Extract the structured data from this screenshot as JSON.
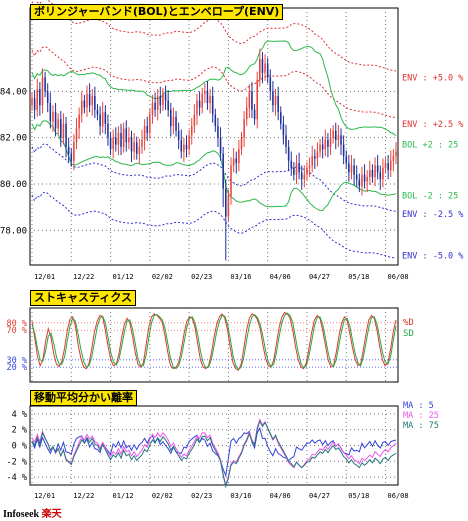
{
  "colors": {
    "up": "#e8453c",
    "down": "#1f2f9a",
    "env5": "#e03030",
    "env25": "#e03030",
    "envn": "#3030d0",
    "bol": "#2db84b",
    "stochK": "#e03a2a",
    "stochD": "#25a845",
    "ma5": "#3344dd",
    "ma25": "#ee55ee",
    "ma75": "#227777",
    "grid": "#777",
    "ref": "#ff8080"
  },
  "footer": {
    "brand": "Infoseek",
    "sub": "楽天"
  },
  "chart_data": [
    {
      "type": "candlestick",
      "title": "ボリンジャーバンド(BOL)とエンベロープ(ENV)",
      "ylim": [
        76.5,
        87.6
      ],
      "yticks": [
        "84.00",
        "82.00",
        "80.00",
        "78.00"
      ],
      "ytick_values": [
        84,
        82,
        80,
        78
      ],
      "x_tick_labels": [
        "12/01",
        "12/22",
        "01/12",
        "02/02",
        "02/23",
        "03/16",
        "04/06",
        "04/27",
        "05/18",
        "06/08"
      ],
      "x_tick_index": [
        0,
        15,
        30,
        45,
        60,
        75,
        90,
        105,
        120,
        135
      ],
      "line_labels": [
        {
          "text": "ENV : +5.0 %",
          "color": "env5",
          "y": 84.6
        },
        {
          "text": "ENV : +2.5 %",
          "color": "env25",
          "y": 82.6
        },
        {
          "text": "BOL +2 : 25",
          "color": "bol",
          "y": 81.7
        },
        {
          "text": "BOL -2 : 25",
          "color": "bol",
          "y": 79.5
        },
        {
          "text": "ENV : -2.5 %",
          "color": "envn",
          "y": 78.7
        },
        {
          "text": "ENV : -5.0 %",
          "color": "envn",
          "y": 76.9
        }
      ],
      "close": [
        83.7,
        83.2,
        84.1,
        83.4,
        84.6,
        84.0,
        83.5,
        82.7,
        83.1,
        82.4,
        82.8,
        82.0,
        82.6,
        81.6,
        81.3,
        81.0,
        81.8,
        82.4,
        83.0,
        83.6,
        83.3,
        83.9,
        83.4,
        83.8,
        83.2,
        83.0,
        82.5,
        83.1,
        82.6,
        82.0,
        81.5,
        82.0,
        81.7,
        82.2,
        81.6,
        82.4,
        81.8,
        82.0,
        81.4,
        81.8,
        81.3,
        81.6,
        81.9,
        82.5,
        82.2,
        83.0,
        83.5,
        83.2,
        83.8,
        83.4,
        83.9,
        83.6,
        83.2,
        82.5,
        82.9,
        82.3,
        81.9,
        81.4,
        81.7,
        81.5,
        82.1,
        82.5,
        83.0,
        83.6,
        83.3,
        83.9,
        84.0,
        83.5,
        83.8,
        83.0,
        82.5,
        82.0,
        81.3,
        79.8,
        78.6,
        79.5,
        80.8,
        81.1,
        80.9,
        81.5,
        82.0,
        82.8,
        83.3,
        84.0,
        83.2,
        82.8,
        84.5,
        85.4,
        84.8,
        85.2,
        84.6,
        84.0,
        83.4,
        83.8,
        83.1,
        82.6,
        82.1,
        81.6,
        81.0,
        80.7,
        80.4,
        80.9,
        80.5,
        80.2,
        80.4,
        80.7,
        80.8,
        81.2,
        81.1,
        81.4,
        81.7,
        81.5,
        81.9,
        81.6,
        82.0,
        82.3,
        81.9,
        82.1,
        81.7,
        81.2,
        80.9,
        80.5,
        80.8,
        80.4,
        80.2,
        79.9,
        80.4,
        80.1,
        80.3,
        80.6,
        80.3,
        80.8,
        80.5,
        80.2,
        80.7,
        80.9,
        80.6,
        81.0,
        81.2,
        81.4
      ]
    },
    {
      "type": "line",
      "title": "ストキャスティクス",
      "yticks_left": [
        "80 %",
        "70 %",
        "30 %",
        "20 %"
      ],
      "ytick_values": [
        80,
        70,
        30,
        20
      ],
      "legend": [
        {
          "text": "%D",
          "color": "stochK"
        },
        {
          "text": "SD",
          "color": "stochD"
        }
      ],
      "series": [
        {
          "name": "%D",
          "values": [
            82,
            60,
            35,
            22,
            30,
            55,
            72,
            60,
            38,
            24,
            21,
            28,
            46,
            70,
            85,
            88,
            75,
            50,
            32,
            20,
            18,
            25,
            45,
            68,
            82,
            90,
            88,
            70,
            48,
            30,
            22,
            24,
            38,
            60,
            78,
            86,
            80,
            62,
            40,
            24,
            20,
            26,
            50,
            74,
            88,
            92,
            90,
            86,
            80,
            62,
            40,
            22,
            18,
            20,
            26,
            44,
            66,
            82,
            88,
            86,
            74,
            52,
            30,
            20,
            18,
            22,
            38,
            60,
            78,
            88,
            92,
            86,
            70,
            46,
            26,
            18,
            16,
            24,
            46,
            70,
            86,
            92,
            90,
            84,
            72,
            50,
            32,
            22,
            20,
            30,
            52,
            74,
            88,
            94,
            92,
            86,
            70,
            48,
            30,
            20,
            18,
            26,
            46,
            68,
            84,
            90,
            86,
            70,
            50,
            30,
            20,
            22,
            40,
            62,
            80,
            88,
            84,
            66,
            46,
            30,
            22,
            24,
            44,
            66,
            84,
            90,
            86,
            70,
            48,
            30,
            22,
            26,
            44,
            68,
            84
          ]
        },
        {
          "name": "SD",
          "values": [
            78,
            66,
            46,
            30,
            28,
            42,
            62,
            66,
            52,
            34,
            24,
            24,
            34,
            56,
            76,
            86,
            82,
            64,
            44,
            28,
            20,
            22,
            34,
            54,
            74,
            86,
            89,
            80,
            60,
            40,
            27,
            23,
            30,
            48,
            68,
            82,
            84,
            72,
            52,
            32,
            22,
            22,
            36,
            60,
            80,
            90,
            91,
            88,
            84,
            72,
            52,
            32,
            20,
            18,
            22,
            34,
            54,
            74,
            86,
            88,
            80,
            64,
            42,
            26,
            19,
            20,
            30,
            48,
            68,
            82,
            90,
            89,
            78,
            58,
            36,
            22,
            17,
            20,
            34,
            56,
            76,
            88,
            91,
            87,
            78,
            62,
            42,
            27,
            21,
            24,
            40,
            62,
            80,
            90,
            93,
            90,
            80,
            60,
            40,
            25,
            19,
            22,
            36,
            56,
            76,
            87,
            88,
            78,
            60,
            40,
            25,
            21,
            30,
            50,
            70,
            84,
            86,
            76,
            56,
            38,
            26,
            22,
            34,
            54,
            74,
            87,
            88,
            78,
            60,
            40,
            27,
            24,
            34,
            56,
            76
          ]
        }
      ]
    },
    {
      "type": "line",
      "title": "移動平均分かい離率",
      "yticks_left": [
        "4 %",
        "2 %",
        "0 %",
        "-2 %",
        "-4 %"
      ],
      "ytick_values": [
        4,
        2,
        0,
        -2,
        -4
      ],
      "legend": [
        {
          "text": "MA : 5",
          "color": "ma5"
        },
        {
          "text": "MA : 25",
          "color": "ma25"
        },
        {
          "text": "MA : 75",
          "color": "ma75"
        }
      ],
      "x_tick_labels": [
        "12/01",
        "12/22",
        "01/12",
        "02/02",
        "02/23",
        "03/16",
        "04/06",
        "04/27",
        "05/18",
        "06/08"
      ],
      "series": [
        {
          "name": "MA : 5",
          "values": [
            0.5,
            -0.3,
            0.8,
            -0.2,
            1.0,
            0.3,
            -0.4,
            -1.0,
            -0.2,
            -0.8,
            0.2,
            -0.6,
            0.4,
            -0.8,
            -0.9,
            -1.1,
            0.2,
            0.9,
            1.1,
            1.2,
            0.3,
            0.8,
            -0.2,
            0.4,
            -0.4,
            -0.5,
            -0.9,
            0.3,
            -0.2,
            -0.7,
            -1.1,
            0.2,
            -0.2,
            0.5,
            -0.3,
            0.6,
            -0.3,
            0.0,
            -0.6,
            0.1,
            -0.5,
            0.1,
            0.4,
            0.9,
            0.3,
            1.0,
            1.2,
            0.4,
            0.9,
            0.1,
            0.5,
            0.0,
            -0.4,
            -1.0,
            -0.2,
            -0.8,
            -0.9,
            -1.0,
            -0.2,
            -0.3,
            0.5,
            0.8,
            1.1,
            1.3,
            0.4,
            0.9,
            0.7,
            -0.1,
            0.3,
            -0.7,
            -1.0,
            -1.3,
            -1.9,
            -3.0,
            -3.8,
            -1.6,
            0.6,
            0.9,
            0.3,
            0.9,
            1.1,
            1.6,
            1.5,
            1.8,
            0.4,
            -0.3,
            1.6,
            2.2,
            0.9,
            0.9,
            -0.1,
            -0.8,
            -1.3,
            -0.4,
            -1.0,
            -1.2,
            -1.5,
            -1.6,
            -1.9,
            -1.6,
            -1.4,
            -0.2,
            -0.4,
            -0.6,
            -0.1,
            0.3,
            0.3,
            0.7,
            0.3,
            0.6,
            0.7,
            0.1,
            0.6,
            0.0,
            0.4,
            0.6,
            -0.1,
            0.2,
            -0.4,
            -0.9,
            -1.0,
            -1.2,
            -0.3,
            -0.7,
            -0.6,
            -0.8,
            0.3,
            -0.3,
            0.1,
            0.5,
            -0.1,
            0.6,
            0.0,
            -0.3,
            0.4,
            0.5,
            0.0,
            0.5,
            0.6,
            0.7
          ]
        },
        {
          "name": "MA : 25",
          "values": [
            1.0,
            0.4,
            1.4,
            0.5,
            1.8,
            1.0,
            0.3,
            -0.6,
            -0.2,
            -1.0,
            -0.4,
            -1.3,
            -0.5,
            -1.7,
            -2.0,
            -2.2,
            -1.2,
            -0.4,
            0.4,
            1.1,
            0.7,
            1.4,
            0.8,
            1.2,
            0.5,
            0.3,
            -0.3,
            0.4,
            -0.2,
            -0.9,
            -1.4,
            -0.8,
            -1.1,
            -0.4,
            -1.1,
            -0.1,
            -0.8,
            -0.6,
            -1.3,
            -0.8,
            -1.4,
            -1.0,
            -0.6,
            0.1,
            -0.2,
            0.8,
            1.4,
            1.0,
            1.6,
            1.1,
            1.6,
            1.2,
            0.7,
            -0.1,
            0.3,
            -0.4,
            -0.9,
            -1.5,
            -1.1,
            -1.3,
            -0.6,
            -0.1,
            0.5,
            1.2,
            0.9,
            1.6,
            1.6,
            1.0,
            1.3,
            0.3,
            -0.3,
            -0.9,
            -1.8,
            -3.6,
            -5.0,
            -3.9,
            -2.3,
            -1.9,
            -2.1,
            -1.4,
            -0.8,
            0.2,
            0.8,
            1.7,
            0.7,
            0.2,
            2.3,
            3.3,
            2.6,
            3.0,
            2.2,
            1.4,
            0.7,
            1.2,
            0.3,
            -0.3,
            -0.9,
            -1.5,
            -2.2,
            -2.5,
            -2.8,
            -2.1,
            -2.5,
            -2.8,
            -2.4,
            -1.9,
            -1.7,
            -1.1,
            -1.2,
            -0.8,
            -0.4,
            -0.6,
            -0.1,
            -0.5,
            0.0,
            0.4,
            -0.1,
            0.2,
            -0.3,
            -0.9,
            -1.2,
            -1.7,
            -1.3,
            -1.8,
            -2.0,
            -2.3,
            -1.6,
            -1.9,
            -1.6,
            -1.2,
            -1.5,
            -0.8,
            -1.1,
            -1.4,
            -0.8,
            -0.5,
            -0.8,
            -0.3,
            0.0,
            0.3
          ]
        },
        {
          "name": "MA : 75",
          "values": [
            0.6,
            0.0,
            1.0,
            0.2,
            1.6,
            0.9,
            0.3,
            -0.6,
            -0.1,
            -0.9,
            -0.4,
            -1.3,
            -0.6,
            -1.8,
            -2.1,
            -2.4,
            -1.4,
            -0.7,
            0.0,
            0.7,
            0.3,
            1.0,
            0.4,
            0.9,
            0.2,
            0.0,
            -0.6,
            0.1,
            -0.5,
            -1.2,
            -1.8,
            -1.2,
            -1.5,
            -0.9,
            -1.6,
            -0.6,
            -1.3,
            -1.1,
            -1.8,
            -1.3,
            -1.9,
            -1.5,
            -1.2,
            -0.5,
            -0.8,
            0.1,
            0.7,
            0.3,
            1.0,
            0.5,
            1.1,
            0.7,
            0.2,
            -0.6,
            -0.1,
            -0.8,
            -1.3,
            -1.9,
            -1.5,
            -1.7,
            -1.0,
            -0.5,
            0.1,
            0.8,
            0.4,
            1.1,
            1.2,
            0.6,
            1.0,
            0.0,
            -0.6,
            -1.2,
            -2.0,
            -3.8,
            -5.2,
            -4.1,
            -2.5,
            -2.1,
            -2.3,
            -1.6,
            -1.0,
            0.0,
            0.6,
            1.5,
            0.5,
            0.1,
            2.0,
            3.1,
            2.4,
            2.9,
            2.2,
            1.5,
            0.8,
            1.3,
            0.5,
            -0.1,
            -0.7,
            -1.3,
            -2.0,
            -2.3,
            -2.7,
            -2.1,
            -2.5,
            -2.8,
            -2.5,
            -2.1,
            -2.0,
            -1.5,
            -1.6,
            -1.2,
            -0.8,
            -1.0,
            -0.5,
            -0.9,
            -0.4,
            -0.0,
            -0.5,
            -0.3,
            -0.8,
            -1.4,
            -1.7,
            -2.2,
            -1.8,
            -2.3,
            -2.5,
            -2.8,
            -2.2,
            -2.5,
            -2.2,
            -1.8,
            -2.2,
            -1.6,
            -1.9,
            -2.3,
            -1.7,
            -1.5,
            -1.9,
            -1.4,
            -1.2,
            -1.0
          ]
        }
      ]
    }
  ]
}
